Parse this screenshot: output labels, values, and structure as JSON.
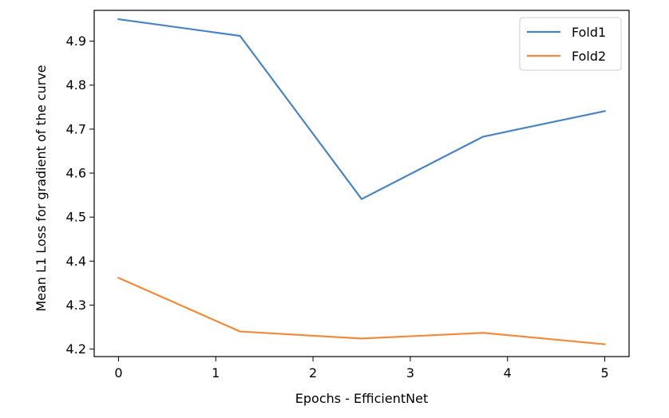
{
  "chart_data": {
    "type": "line",
    "title": "",
    "xlabel": "Epochs - EfficientNet",
    "ylabel": "Mean L1 Loss for gradient of the curve",
    "xlim": [
      -0.25,
      5.25
    ],
    "ylim": [
      4.183,
      4.97
    ],
    "xticks": [
      "0",
      "1",
      "2",
      "3",
      "4",
      "5"
    ],
    "xtick_values": [
      0,
      1,
      2,
      3,
      4,
      5
    ],
    "yticks": [
      "4.2",
      "4.3",
      "4.4",
      "4.5",
      "4.6",
      "4.7",
      "4.8",
      "4.9"
    ],
    "ytick_values": [
      4.2,
      4.3,
      4.4,
      4.5,
      4.6,
      4.7,
      4.8,
      4.9
    ],
    "grid": false,
    "legend_position": "top-right",
    "x": [
      0,
      1.25,
      2.5,
      3.75,
      5
    ],
    "series": [
      {
        "name": "Fold1",
        "color": "#4a84c0",
        "values": [
          4.95,
          4.912,
          4.541,
          4.683,
          4.741
        ]
      },
      {
        "name": "Fold2",
        "color": "#f08c3c",
        "values": [
          4.362,
          4.24,
          4.224,
          4.237,
          4.211
        ]
      }
    ]
  }
}
